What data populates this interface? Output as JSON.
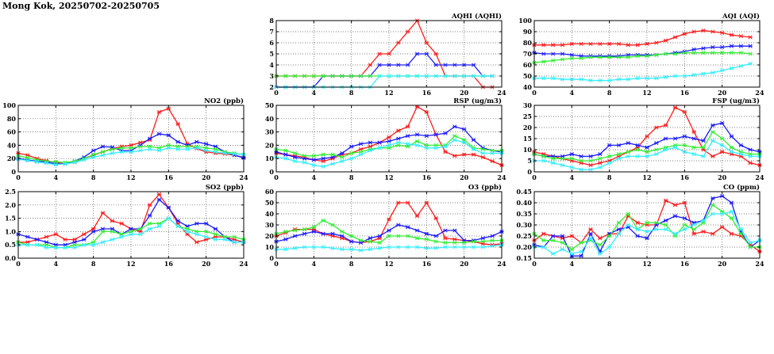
{
  "title": "Mong Kok, 20250702-20250705",
  "colors": {
    "series1": "#ff1a1a",
    "series2": "#1a1aff",
    "series3": "#33ee33",
    "series4": "#33eeff",
    "grid": "#555555",
    "frame": "#000000"
  },
  "chart_data": [
    {
      "id": "aqhi",
      "type": "line",
      "title": "AQHI (AQHI)",
      "xlim": [
        0,
        24
      ],
      "xticks": [
        0,
        4,
        8,
        12,
        16,
        20,
        24
      ],
      "ylim": [
        2,
        8
      ],
      "yticks": [
        2,
        3,
        4,
        5,
        6,
        7,
        8
      ],
      "series": [
        {
          "name": "series-1",
          "color": "#ff1a1a",
          "values": [
            3,
            3,
            3,
            3,
            3,
            3,
            3,
            3,
            3,
            3,
            4,
            5,
            5,
            6,
            7,
            8,
            6,
            5,
            3,
            3,
            3,
            3,
            2,
            2
          ]
        },
        {
          "name": "series-2",
          "color": "#1a1aff",
          "values": [
            2,
            2,
            2,
            2,
            2,
            3,
            3,
            3,
            3,
            3,
            3,
            4,
            4,
            4,
            4,
            5,
            5,
            4,
            4,
            4,
            4,
            4,
            3,
            3
          ]
        },
        {
          "name": "series-3",
          "color": "#33ee33",
          "values": [
            3,
            3,
            3,
            3,
            3,
            3,
            3,
            3,
            3,
            3,
            3,
            3,
            3,
            3,
            3,
            3,
            3,
            3,
            3,
            3,
            3,
            3,
            3,
            3
          ]
        },
        {
          "name": "series-4",
          "color": "#33eeff",
          "values": [
            2,
            2,
            2,
            2,
            2,
            2,
            2,
            2,
            2,
            2,
            2,
            3,
            3,
            3,
            3,
            3,
            3,
            3,
            3,
            3,
            3,
            3,
            3,
            3
          ]
        }
      ]
    },
    {
      "id": "aqi",
      "type": "line",
      "title": "AQI (AQI)",
      "xlim": [
        0,
        24
      ],
      "xticks": [
        0,
        4,
        8,
        12,
        16,
        20,
        24
      ],
      "ylim": [
        40,
        100
      ],
      "yticks": [
        40,
        50,
        60,
        70,
        80,
        90,
        100
      ],
      "series": [
        {
          "name": "series-1",
          "color": "#ff1a1a",
          "values": [
            78,
            78,
            78,
            78,
            79,
            79,
            79,
            79,
            79,
            79,
            78,
            78,
            79,
            80,
            82,
            85,
            88,
            90,
            91,
            90,
            89,
            87,
            86,
            85
          ]
        },
        {
          "name": "series-2",
          "color": "#1a1aff",
          "values": [
            71,
            70,
            70,
            70,
            69,
            68,
            68,
            68,
            68,
            68,
            69,
            69,
            69,
            69,
            70,
            71,
            72,
            74,
            75,
            76,
            76,
            77,
            77,
            77
          ]
        },
        {
          "name": "series-3",
          "color": "#33ee33",
          "values": [
            62,
            63,
            64,
            65,
            66,
            66,
            67,
            67,
            67,
            67,
            67,
            68,
            68,
            69,
            70,
            70,
            71,
            71,
            71,
            71,
            71,
            71,
            71,
            70
          ]
        },
        {
          "name": "series-4",
          "color": "#33eeff",
          "values": [
            48,
            48,
            48,
            47,
            47,
            47,
            46,
            46,
            46,
            47,
            47,
            48,
            48,
            48,
            49,
            50,
            50,
            51,
            52,
            53,
            55,
            57,
            59,
            61
          ]
        }
      ]
    },
    {
      "id": "no2",
      "type": "line",
      "title": "NO2 (ppb)",
      "xlim": [
        0,
        24
      ],
      "xticks": [
        0,
        4,
        8,
        12,
        16,
        20,
        24
      ],
      "ylim": [
        0,
        100
      ],
      "yticks": [
        0,
        20,
        40,
        60,
        80,
        100
      ],
      "series": [
        {
          "name": "series-1",
          "color": "#ff1a1a",
          "values": [
            28,
            25,
            20,
            17,
            14,
            12,
            15,
            20,
            25,
            30,
            35,
            38,
            40,
            44,
            48,
            90,
            95,
            72,
            42,
            35,
            30,
            28,
            27,
            25,
            22
          ]
        },
        {
          "name": "series-2",
          "color": "#1a1aff",
          "values": [
            20,
            18,
            16,
            15,
            12,
            12,
            16,
            22,
            32,
            38,
            37,
            32,
            32,
            40,
            50,
            57,
            55,
            45,
            40,
            45,
            42,
            38,
            30,
            25,
            21
          ]
        },
        {
          "name": "series-3",
          "color": "#33ee33",
          "values": [
            24,
            21,
            18,
            16,
            15,
            14,
            16,
            20,
            26,
            30,
            34,
            36,
            36,
            38,
            38,
            36,
            40,
            38,
            38,
            38,
            36,
            34,
            30,
            28,
            26
          ]
        },
        {
          "name": "series-4",
          "color": "#33eeff",
          "values": [
            19,
            17,
            15,
            13,
            11,
            12,
            14,
            18,
            22,
            25,
            28,
            30,
            30,
            32,
            34,
            32,
            36,
            34,
            34,
            36,
            32,
            30,
            28,
            27,
            26
          ]
        }
      ]
    },
    {
      "id": "rsp",
      "type": "line",
      "title": "RSP (ug/m3)",
      "xlim": [
        0,
        24
      ],
      "xticks": [
        0,
        4,
        8,
        12,
        16,
        20,
        24
      ],
      "ylim": [
        0,
        50
      ],
      "yticks": [
        0,
        10,
        20,
        30,
        40,
        50
      ],
      "series": [
        {
          "name": "series-1",
          "color": "#ff1a1a",
          "values": [
            14,
            13,
            12,
            11,
            9,
            8,
            10,
            13,
            14,
            17,
            19,
            22,
            26,
            31,
            34,
            49,
            45,
            28,
            15,
            12,
            13,
            13,
            11,
            8,
            5
          ]
        },
        {
          "name": "series-2",
          "color": "#1a1aff",
          "values": [
            15,
            13,
            11,
            10,
            9,
            10,
            11,
            14,
            19,
            21,
            22,
            22,
            23,
            25,
            27,
            28,
            27,
            28,
            29,
            34,
            32,
            24,
            18,
            16,
            15
          ]
        },
        {
          "name": "series-3",
          "color": "#33ee33",
          "values": [
            17,
            16,
            14,
            12,
            12,
            13,
            13,
            11,
            14,
            15,
            17,
            18,
            18,
            20,
            19,
            23,
            20,
            20,
            20,
            27,
            24,
            18,
            17,
            16,
            16
          ]
        },
        {
          "name": "series-4",
          "color": "#33eeff",
          "values": [
            11,
            10,
            8,
            7,
            5,
            4,
            6,
            8,
            10,
            13,
            16,
            18,
            20,
            22,
            21,
            20,
            18,
            18,
            19,
            24,
            22,
            17,
            14,
            14,
            14
          ]
        }
      ]
    },
    {
      "id": "fsp",
      "type": "line",
      "title": "FSP (ug/m3)",
      "xlim": [
        0,
        24
      ],
      "xticks": [
        0,
        4,
        8,
        12,
        16,
        20,
        24
      ],
      "ylim": [
        0,
        30
      ],
      "yticks": [
        0,
        5,
        10,
        15,
        20,
        25,
        30
      ],
      "series": [
        {
          "name": "series-1",
          "color": "#ff1a1a",
          "values": [
            9,
            8,
            7,
            6,
            5,
            4,
            3,
            4,
            5,
            7,
            9,
            11,
            16,
            20,
            21,
            29,
            27,
            18,
            10,
            7,
            9,
            8,
            7,
            4,
            3
          ]
        },
        {
          "name": "series-2",
          "color": "#1a1aff",
          "values": [
            8,
            7,
            7,
            7,
            8,
            7,
            7,
            8,
            12,
            12,
            13,
            12,
            11,
            13,
            15,
            15,
            16,
            15,
            14,
            21,
            22,
            16,
            12,
            10,
            9
          ]
        },
        {
          "name": "series-3",
          "color": "#33ee33",
          "values": [
            8,
            7,
            6,
            6,
            6,
            5,
            5,
            6,
            7,
            8,
            9,
            10,
            9,
            10,
            11,
            12,
            12,
            11,
            11,
            18,
            15,
            11,
            9,
            8,
            8
          ]
        },
        {
          "name": "series-4",
          "color": "#33eeff",
          "values": [
            5,
            5,
            4,
            3,
            2,
            1,
            1,
            2,
            4,
            6,
            7,
            7,
            7,
            8,
            10,
            11,
            9,
            8,
            7,
            14,
            12,
            9,
            8,
            7,
            7
          ]
        }
      ]
    },
    {
      "id": "so2",
      "type": "line",
      "title": "SO2 (ppb)",
      "xlim": [
        0,
        24
      ],
      "xticks": [
        0,
        4,
        8,
        12,
        16,
        20,
        24
      ],
      "ylim": [
        0.0,
        2.5
      ],
      "yticks": [
        0.0,
        0.5,
        1.0,
        1.5,
        2.0,
        2.5
      ],
      "series": [
        {
          "name": "series-1",
          "color": "#ff1a1a",
          "values": [
            0.6,
            0.6,
            0.7,
            0.8,
            0.9,
            0.7,
            0.7,
            0.9,
            1.1,
            1.7,
            1.4,
            1.3,
            1.1,
            1.0,
            2.0,
            2.4,
            1.9,
            1.3,
            0.9,
            0.6,
            0.7,
            0.8,
            0.8,
            0.7,
            0.6
          ]
        },
        {
          "name": "series-2",
          "color": "#1a1aff",
          "values": [
            0.9,
            0.8,
            0.7,
            0.6,
            0.5,
            0.5,
            0.6,
            0.7,
            1.0,
            1.1,
            1.1,
            0.9,
            1.1,
            1.1,
            1.6,
            2.2,
            1.9,
            1.4,
            1.2,
            1.3,
            1.3,
            1.1,
            0.8,
            0.6,
            0.6
          ]
        },
        {
          "name": "series-3",
          "color": "#33ee33",
          "values": [
            0.6,
            0.5,
            0.5,
            0.5,
            0.4,
            0.4,
            0.5,
            0.5,
            0.6,
            1.0,
            1.0,
            0.9,
            1.0,
            1.1,
            1.3,
            1.3,
            1.5,
            1.2,
            1.1,
            1.0,
            1.0,
            0.9,
            0.8,
            0.8,
            0.7
          ]
        },
        {
          "name": "series-4",
          "color": "#33eeff",
          "values": [
            0.5,
            0.5,
            0.5,
            0.4,
            0.4,
            0.4,
            0.4,
            0.5,
            0.5,
            0.6,
            0.7,
            0.8,
            0.9,
            0.9,
            1.1,
            1.2,
            1.5,
            1.2,
            1.0,
            0.9,
            0.8,
            0.7,
            0.7,
            0.6,
            0.6
          ]
        }
      ]
    },
    {
      "id": "o3",
      "type": "line",
      "title": "O3 (ppb)",
      "xlim": [
        0,
        24
      ],
      "xticks": [
        0,
        4,
        8,
        12,
        16,
        20,
        24
      ],
      "ylim": [
        0,
        60
      ],
      "yticks": [
        0,
        10,
        20,
        30,
        40,
        50,
        60
      ],
      "series": [
        {
          "name": "series-1",
          "color": "#ff1a1a",
          "values": [
            20,
            23,
            26,
            26,
            26,
            22,
            20,
            18,
            15,
            14,
            15,
            18,
            35,
            50,
            50,
            38,
            50,
            36,
            18,
            17,
            16,
            15,
            13,
            12,
            13
          ]
        },
        {
          "name": "series-2",
          "color": "#1a1aff",
          "values": [
            15,
            17,
            20,
            22,
            24,
            22,
            22,
            20,
            15,
            14,
            18,
            20,
            25,
            30,
            28,
            25,
            22,
            20,
            25,
            25,
            16,
            16,
            18,
            20,
            24
          ]
        },
        {
          "name": "series-3",
          "color": "#33ee33",
          "values": [
            22,
            24,
            25,
            26,
            28,
            34,
            30,
            24,
            20,
            16,
            15,
            14,
            20,
            20,
            20,
            18,
            17,
            15,
            14,
            14,
            14,
            15,
            15,
            16,
            16
          ]
        },
        {
          "name": "series-4",
          "color": "#33eeff",
          "values": [
            8,
            8,
            9,
            10,
            10,
            10,
            9,
            8,
            8,
            7,
            8,
            9,
            10,
            10,
            10,
            10,
            9,
            9,
            10,
            10,
            10,
            10,
            10,
            11,
            12
          ]
        }
      ]
    },
    {
      "id": "co",
      "type": "line",
      "title": "CO (ppm)",
      "xlim": [
        0,
        24
      ],
      "xticks": [
        0,
        4,
        8,
        12,
        16,
        20,
        24
      ],
      "ylim": [
        0.15,
        0.45
      ],
      "yticks": [
        0.15,
        0.2,
        0.25,
        0.3,
        0.35,
        0.4,
        0.45
      ],
      "series": [
        {
          "name": "series-1",
          "color": "#ff1a1a",
          "values": [
            0.23,
            0.26,
            0.25,
            0.24,
            0.25,
            0.22,
            0.28,
            0.24,
            0.26,
            0.26,
            0.34,
            0.31,
            0.3,
            0.3,
            0.41,
            0.39,
            0.4,
            0.26,
            0.27,
            0.26,
            0.29,
            0.26,
            0.25,
            0.21,
            0.18
          ]
        },
        {
          "name": "series-2",
          "color": "#1a1aff",
          "values": [
            0.21,
            0.2,
            0.25,
            0.25,
            0.16,
            0.16,
            0.26,
            0.18,
            0.26,
            0.28,
            0.29,
            0.25,
            0.24,
            0.3,
            0.32,
            0.34,
            0.33,
            0.31,
            0.32,
            0.42,
            0.43,
            0.4,
            0.27,
            0.2,
            0.23
          ]
        },
        {
          "name": "series-3",
          "color": "#33ee33",
          "values": [
            0.26,
            0.23,
            0.23,
            0.22,
            0.19,
            0.22,
            0.23,
            0.21,
            0.25,
            0.31,
            0.35,
            0.28,
            0.31,
            0.31,
            0.3,
            0.25,
            0.3,
            0.28,
            0.31,
            0.39,
            0.36,
            0.33,
            0.26,
            0.2,
            0.2
          ]
        },
        {
          "name": "series-4",
          "color": "#33eeff",
          "values": [
            0.2,
            0.2,
            0.17,
            0.19,
            0.17,
            0.18,
            0.24,
            0.17,
            0.2,
            0.26,
            0.3,
            0.28,
            0.27,
            0.28,
            0.28,
            0.26,
            0.28,
            0.3,
            0.32,
            0.35,
            0.35,
            0.36,
            0.28,
            0.22,
            0.23
          ]
        }
      ]
    }
  ]
}
